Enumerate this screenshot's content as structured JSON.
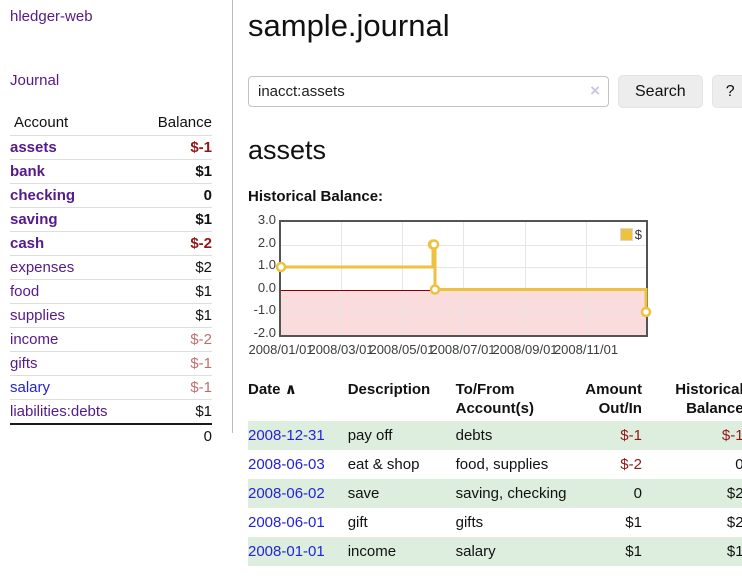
{
  "app_title": "hledger-web",
  "nav": {
    "journal": "Journal"
  },
  "sidebar": {
    "account_header": "Account",
    "balance_header": "Balance",
    "rows": [
      {
        "name": "assets",
        "balance": "$-1",
        "level": 1,
        "bold": true,
        "amount_class": "neg-strong",
        "link": "visited"
      },
      {
        "name": "bank",
        "balance": "$1",
        "level": 2,
        "bold": true,
        "amount_class": "",
        "link": "visited"
      },
      {
        "name": "checking",
        "balance": "0",
        "level": 3,
        "bold": true,
        "amount_class": "",
        "link": "visited"
      },
      {
        "name": "saving",
        "balance": "$1",
        "level": 3,
        "bold": true,
        "amount_class": "",
        "link": "visited"
      },
      {
        "name": "cash",
        "balance": "$-2",
        "level": 2,
        "bold": true,
        "amount_class": "neg-strong",
        "link": "visited"
      },
      {
        "name": "expenses",
        "balance": "$2",
        "level": 1,
        "bold": false,
        "amount_class": "",
        "link": "visited"
      },
      {
        "name": "food",
        "balance": "$1",
        "level": 2,
        "bold": false,
        "amount_class": "",
        "link": "visited"
      },
      {
        "name": "supplies",
        "balance": "$1",
        "level": 2,
        "bold": false,
        "amount_class": "",
        "link": "visited"
      },
      {
        "name": "income",
        "balance": "$-2",
        "level": 1,
        "bold": false,
        "amount_class": "neg-soft",
        "link": "visited"
      },
      {
        "name": "gifts",
        "balance": "$-1",
        "level": 2,
        "bold": false,
        "amount_class": "neg-soft",
        "link": "visited"
      },
      {
        "name": "salary",
        "balance": "$-1",
        "level": 2,
        "bold": false,
        "amount_class": "neg-soft",
        "link": "new"
      },
      {
        "name": "liabilities:debts",
        "balance": "$1",
        "level": 1,
        "bold": false,
        "amount_class": "",
        "link": "visited"
      }
    ],
    "total": "0"
  },
  "main": {
    "title": "sample.journal",
    "search": {
      "value": "inacct:assets",
      "clear": "×",
      "search_button": "Search",
      "help_button": "?"
    },
    "account_title": "assets",
    "chart_label": "Historical Balance:"
  },
  "chart_data": {
    "type": "line",
    "mode": "steps",
    "title": "Historical Balance",
    "x_range": [
      "2008-01-01",
      "2008-12-31"
    ],
    "ylim": [
      -2,
      3
    ],
    "yticks": [
      "3.0",
      "2.0",
      "1.0",
      "0.0",
      "-1.0",
      "-2.0"
    ],
    "ytick_values": [
      3,
      2,
      1,
      0,
      -1,
      -2
    ],
    "xtick_labels": [
      "2008/01/01",
      "2008/03/01",
      "2008/05/01",
      "2008/07/01",
      "2008/09/01",
      "2008/11/01"
    ],
    "xtick_dates": [
      "2008-01-01",
      "2008-03-01",
      "2008-05-01",
      "2008-07-01",
      "2008-09-01",
      "2008-11-01"
    ],
    "grid": true,
    "legend_position": "top-right",
    "negative_region": true,
    "colors": {
      "series": "#edc240",
      "negative_fill": "#fbdcdc",
      "zero_line": "#8b0000",
      "plot_border": "#545454"
    },
    "series": [
      {
        "name": "$",
        "color": "#edc240",
        "points": [
          {
            "date": "2008-01-01",
            "value": 1
          },
          {
            "date": "2008-06-01",
            "value": 2
          },
          {
            "date": "2008-06-02",
            "value": 2
          },
          {
            "date": "2008-06-03",
            "value": 0
          },
          {
            "date": "2008-12-31",
            "value": -1
          }
        ]
      }
    ]
  },
  "register": {
    "columns": [
      {
        "label": "Date",
        "sort": "∧",
        "align": "left"
      },
      {
        "label": "Description",
        "align": "left"
      },
      {
        "label": "To/From Account(s)",
        "align": "left"
      },
      {
        "label": "Amount Out/In",
        "align": "right"
      },
      {
        "label": "Historical Balance",
        "align": "right"
      }
    ],
    "rows": [
      {
        "date": "2008-12-31",
        "description": "pay off",
        "accounts": "debts",
        "amount": "$-1",
        "amount_negative": true,
        "balance": "$-1",
        "balance_negative": true
      },
      {
        "date": "2008-06-03",
        "description": "eat & shop",
        "accounts": "food, supplies",
        "amount": "$-2",
        "amount_negative": true,
        "balance": "0",
        "balance_negative": false
      },
      {
        "date": "2008-06-02",
        "description": "save",
        "accounts": "saving, checking",
        "amount": "0",
        "amount_negative": false,
        "balance": "$2",
        "balance_negative": false
      },
      {
        "date": "2008-06-01",
        "description": "gift",
        "accounts": "gifts",
        "amount": "$1",
        "amount_negative": false,
        "balance": "$2",
        "balance_negative": false
      },
      {
        "date": "2008-01-01",
        "description": "income",
        "accounts": "salary",
        "amount": "$1",
        "amount_negative": false,
        "balance": "$1",
        "balance_negative": false
      }
    ]
  }
}
